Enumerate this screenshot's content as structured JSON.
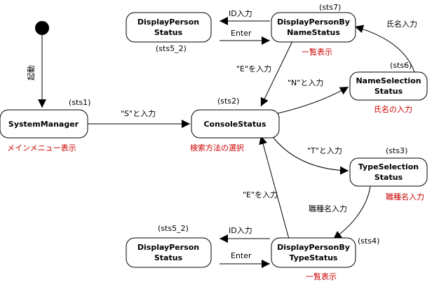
{
  "nodes": {
    "system_manager": {
      "label": "SystemManager",
      "tag": "(sts1)",
      "note": "メインメニュー表示"
    },
    "console_status": {
      "label": "ConsoleStatus",
      "tag": "(sts2)",
      "note": "検索方法の選択"
    },
    "name_selection": {
      "label_line1": "NameSelection",
      "label_line2": "Status",
      "tag": "(sts6)",
      "note": "氏名の入力"
    },
    "type_selection": {
      "label_line1": "TypeSelection",
      "label_line2": "Status",
      "tag": "(sts3)",
      "note": "職種名入力"
    },
    "display_by_name": {
      "label_line1": "DisplayPersonBy",
      "label_line2": "NameStatus",
      "tag": "(sts7)",
      "note": "一覧表示"
    },
    "display_by_type": {
      "label_line1": "DisplayPersonBy",
      "label_line2": "TypeStatus",
      "tag": "(sts4)",
      "note": "一覧表示"
    },
    "display_person_top": {
      "label_line1": "DisplayPerson",
      "label_line2": "Status",
      "tag": "(sts5_2)"
    },
    "display_person_bottom": {
      "label_line1": "DisplayPerson",
      "label_line2": "Status",
      "tag": "(sts5_2)"
    }
  },
  "edges": {
    "start_to_system": "起動",
    "system_to_console": "\"S\"と入力",
    "console_to_name": "\"N\"と入力",
    "console_to_type": "\"T\"と入力",
    "name_to_display_by_name": "氏名入力",
    "type_to_display_by_type": "職種名入力",
    "display_by_name_to_console": "\"E\"を入力",
    "display_by_type_to_console": "\"E\"を入力",
    "top_id_input": "ID入力",
    "top_enter": "Enter",
    "bottom_id_input": "ID入力",
    "bottom_enter": "Enter"
  },
  "colors": {
    "note": "#cc0000",
    "line": "#000000",
    "start_marker": "#000000"
  }
}
